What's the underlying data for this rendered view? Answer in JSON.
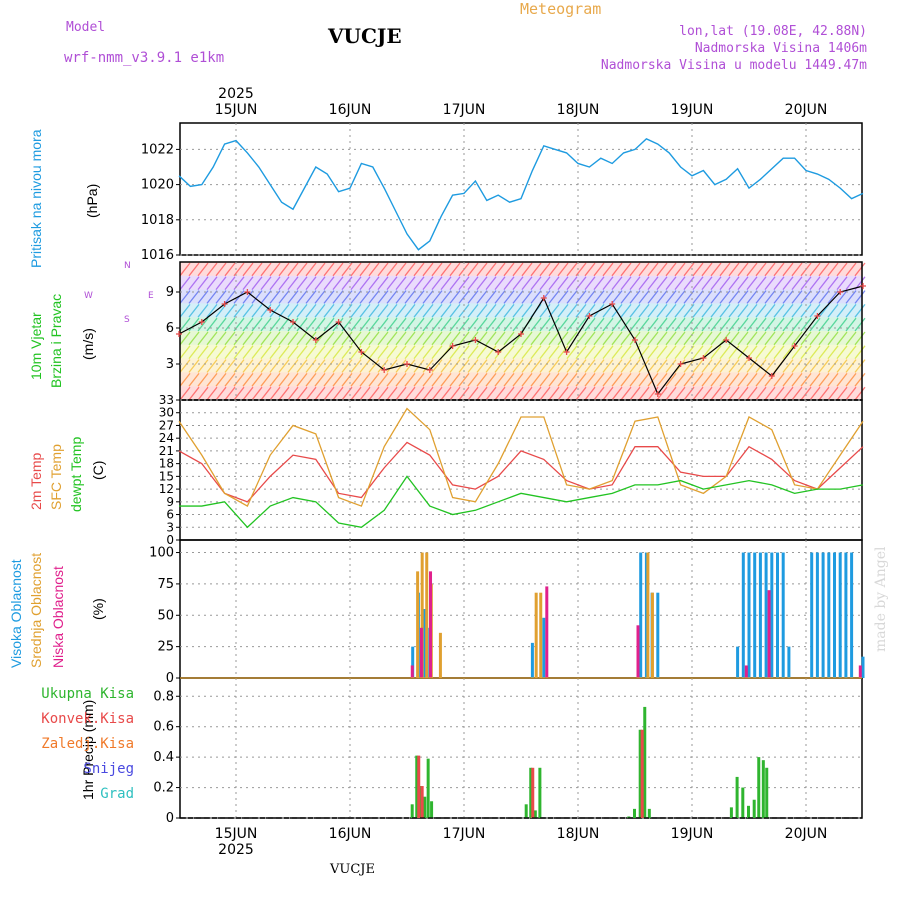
{
  "header": {
    "model_label": "Model",
    "model_name": "wrf-nmm_v3.9.1  e1km",
    "station": "VUCJE",
    "meteogram": "Meteogram",
    "lonlat": "lon,lat (19.08E, 42.88N)",
    "elevation": "Nadmorska Visina 1406m",
    "model_elevation": "Nadmorska Visina u modelu 1449.47m"
  },
  "footer": {
    "station": "VUCJE",
    "watermark": "made by Angel"
  },
  "colors": {
    "pressure": "#1e9be0",
    "temp2m": "#e84a4a",
    "sfc": "#e0a030",
    "dewpt": "#22c322",
    "high_cloud": "#1e9be0",
    "mid_cloud": "#e0a030",
    "low_cloud": "#e0208c",
    "total_precip": "#2fb52f",
    "conv_precip": "#e84a4a",
    "frz_rain": "#f07a2a",
    "snow": "#4a4ae0",
    "graupel": "#2fc0c0"
  },
  "axes": {
    "year": "2025",
    "days": [
      "15JUN",
      "16JUN",
      "17JUN",
      "18JUN",
      "19JUN",
      "20JUN"
    ]
  },
  "panels": {
    "pressure": {
      "label1": "Pritisak na nivou mora",
      "unit": "(hPa)",
      "ticks": [
        "1016",
        "1018",
        "1020",
        "1022"
      ]
    },
    "wind": {
      "label1": "10m Vjetar",
      "label2": "Brzina i Pravac",
      "unit": "(m/s)",
      "ticks": [
        "3",
        "6",
        "9"
      ],
      "compass": {
        "n": "N",
        "s": "S",
        "w": "W",
        "e": "E"
      }
    },
    "temp": {
      "label1": "2m Temp",
      "label2": "SFC Temp",
      "label3": "dewpt Temp",
      "unit": "(C)",
      "ticks": [
        "0",
        "3",
        "6",
        "9",
        "12",
        "15",
        "18",
        "21",
        "24",
        "27",
        "30",
        "33"
      ]
    },
    "cloud": {
      "label1": "Visoka Oblacnost",
      "label2": "Srednja Oblacnost",
      "label3": "Niska Oblacnost",
      "unit": "(%)",
      "ticks": [
        "0",
        "25",
        "50",
        "75",
        "100"
      ]
    },
    "precip": {
      "unit": "1hr Precip (mm)",
      "ticks": [
        "0",
        "0.2",
        "0.4",
        "0.6",
        "0.8"
      ],
      "legend": [
        "Ukupna Kisa",
        "Konvek.Kisa",
        "Zaledj.Kisa",
        "Snijeg",
        "Grad"
      ]
    }
  },
  "chart_data": [
    {
      "type": "line",
      "title": "Pritisak na nivou mora",
      "ylabel": "(hPa)",
      "x_unit": "days from 15JUN 00UTC",
      "ylim": [
        1016,
        1023.5
      ],
      "series": [
        {
          "name": "Pritisak na nivou mora",
          "x": [
            -0.5,
            -0.4,
            -0.3,
            -0.2,
            -0.1,
            0,
            0.1,
            0.2,
            0.3,
            0.4,
            0.5,
            0.6,
            0.7,
            0.8,
            0.9,
            1.0,
            1.1,
            1.2,
            1.3,
            1.4,
            1.5,
            1.6,
            1.7,
            1.8,
            1.9,
            2.0,
            2.1,
            2.2,
            2.3,
            2.4,
            2.5,
            2.6,
            2.7,
            2.8,
            2.9,
            3.0,
            3.1,
            3.2,
            3.3,
            3.4,
            3.5,
            3.6,
            3.7,
            3.8,
            3.9,
            4.0,
            4.1,
            4.2,
            4.3,
            4.4,
            4.5,
            4.6,
            4.7,
            4.8,
            4.9,
            5.0,
            5.1,
            5.2,
            5.3,
            5.4,
            5.5
          ],
          "y": [
            1020.5,
            1019.9,
            1020.0,
            1021.0,
            1022.3,
            1022.5,
            1021.8,
            1021.0,
            1020.0,
            1019.0,
            1018.6,
            1019.8,
            1021.0,
            1020.6,
            1019.6,
            1019.8,
            1021.2,
            1021.0,
            1019.8,
            1018.5,
            1017.2,
            1016.3,
            1016.8,
            1018.2,
            1019.4,
            1019.5,
            1020.2,
            1019.1,
            1019.4,
            1019.0,
            1019.2,
            1020.8,
            1022.2,
            1022.0,
            1021.8,
            1021.2,
            1021.0,
            1021.5,
            1021.2,
            1021.8,
            1022.0,
            1022.6,
            1022.3,
            1021.8,
            1021.0,
            1020.5,
            1020.8,
            1020.0,
            1020.3,
            1020.9,
            1019.8,
            1020.3,
            1020.9,
            1021.5,
            1021.5,
            1020.8,
            1020.6,
            1020.3,
            1019.8,
            1019.2,
            1019.5
          ]
        }
      ]
    },
    {
      "type": "line",
      "title": "10m Vjetar Brzina i Pravac",
      "ylabel": "(m/s)",
      "ylim": [
        0,
        11.5
      ],
      "series": [
        {
          "name": "wind speed",
          "x": [
            -0.5,
            -0.3,
            -0.1,
            0.1,
            0.3,
            0.5,
            0.7,
            0.9,
            1.1,
            1.3,
            1.5,
            1.7,
            1.9,
            2.1,
            2.3,
            2.5,
            2.7,
            2.9,
            3.1,
            3.3,
            3.5,
            3.7,
            3.9,
            4.1,
            4.3,
            4.5,
            4.7,
            4.9,
            5.1,
            5.3,
            5.5
          ],
          "y": [
            5.5,
            6.5,
            8,
            9,
            7.5,
            6.5,
            5,
            6.5,
            4,
            2.5,
            3,
            2.5,
            4.5,
            5,
            4,
            5.5,
            8.5,
            4,
            7,
            8,
            5,
            0.5,
            3,
            3.5,
            5,
            3.5,
            2,
            4.5,
            7,
            9,
            9.5
          ]
        }
      ]
    },
    {
      "type": "line",
      "title": "2m Temp / SFC Temp / dewpt Temp",
      "ylabel": "(C)",
      "ylim": [
        0,
        33
      ],
      "series": [
        {
          "name": "2m Temp",
          "x": [
            -0.5,
            -0.3,
            -0.1,
            0.1,
            0.3,
            0.5,
            0.7,
            0.9,
            1.1,
            1.3,
            1.5,
            1.7,
            1.9,
            2.1,
            2.3,
            2.5,
            2.7,
            2.9,
            3.1,
            3.3,
            3.5,
            3.7,
            3.9,
            4.1,
            4.3,
            4.5,
            4.7,
            4.9,
            5.1,
            5.3,
            5.5
          ],
          "y": [
            21,
            18,
            11,
            9,
            15,
            20,
            19,
            11,
            10,
            17,
            23,
            20,
            13,
            12,
            15,
            21,
            19,
            14,
            12,
            13,
            22,
            22,
            16,
            15,
            15,
            22,
            19,
            14,
            12,
            17,
            22
          ]
        },
        {
          "name": "SFC Temp",
          "x": [
            -0.5,
            -0.3,
            -0.1,
            0.1,
            0.3,
            0.5,
            0.7,
            0.9,
            1.1,
            1.3,
            1.5,
            1.7,
            1.9,
            2.1,
            2.3,
            2.5,
            2.7,
            2.9,
            3.1,
            3.3,
            3.5,
            3.7,
            3.9,
            4.1,
            4.3,
            4.5,
            4.7,
            4.9,
            5.1,
            5.3,
            5.5
          ],
          "y": [
            28,
            20,
            11,
            8,
            20,
            27,
            25,
            10,
            8,
            22,
            31,
            26,
            10,
            9,
            18,
            29,
            29,
            13,
            12,
            14,
            28,
            29,
            13,
            11,
            15,
            29,
            26,
            13,
            12,
            20,
            28
          ]
        },
        {
          "name": "dewpt Temp",
          "x": [
            -0.5,
            -0.3,
            -0.1,
            0.1,
            0.3,
            0.5,
            0.7,
            0.9,
            1.1,
            1.3,
            1.5,
            1.7,
            1.9,
            2.1,
            2.3,
            2.5,
            2.7,
            2.9,
            3.1,
            3.3,
            3.5,
            3.7,
            3.9,
            4.1,
            4.3,
            4.5,
            4.7,
            4.9,
            5.1,
            5.3,
            5.5
          ],
          "y": [
            8,
            8,
            9,
            3,
            8,
            10,
            9,
            4,
            3,
            7,
            15,
            8,
            6,
            7,
            9,
            11,
            10,
            9,
            10,
            11,
            13,
            13,
            14,
            12,
            13,
            14,
            13,
            11,
            12,
            12,
            13
          ]
        }
      ]
    },
    {
      "type": "bar",
      "title": "Oblacnost",
      "ylabel": "(%)",
      "ylim": [
        0,
        100
      ],
      "series": [
        {
          "name": "Visoka Oblacnost",
          "x": [
            1.55,
            1.6,
            1.65,
            1.7,
            2.6,
            2.7,
            3.55,
            3.6,
            3.65,
            3.7,
            4.4,
            4.45,
            4.5,
            4.55,
            4.6,
            4.65,
            4.7,
            4.75,
            4.8,
            4.85,
            5.05,
            5.1,
            5.15,
            5.2,
            5.25,
            5.3,
            5.35,
            5.4,
            5.5
          ],
          "y": [
            25,
            68,
            55,
            40,
            28,
            48,
            100,
            100,
            68,
            68,
            25,
            100,
            100,
            100,
            100,
            100,
            100,
            100,
            100,
            25,
            100,
            100,
            100,
            100,
            100,
            100,
            100,
            100,
            17
          ]
        },
        {
          "name": "Srednja Oblacnost",
          "x": [
            1.58,
            1.62,
            1.66,
            1.7,
            1.78,
            2.62,
            2.66,
            3.6,
            3.64
          ],
          "y": [
            85,
            100,
            100,
            75,
            36,
            68,
            68,
            100,
            68
          ]
        },
        {
          "name": "Niska Oblacnost",
          "x": [
            1.52,
            1.6,
            1.68,
            2.7,
            3.5,
            4.45,
            4.65,
            5.45
          ],
          "y": [
            10,
            40,
            85,
            73,
            42,
            10,
            70,
            10
          ]
        }
      ]
    },
    {
      "type": "bar",
      "title": "1hr Precip",
      "ylabel": "1hr Precip (mm)",
      "ylim": [
        0,
        0.9
      ],
      "series": [
        {
          "name": "Ukupna Kisa",
          "x": [
            1.55,
            1.59,
            1.62,
            1.66,
            1.69,
            1.72,
            2.55,
            2.59,
            2.63,
            2.67,
            3.45,
            3.5,
            3.55,
            3.59,
            3.63,
            4.35,
            4.4,
            4.45,
            4.5,
            4.55,
            4.59,
            4.63,
            4.66
          ],
          "y": [
            0.09,
            0.41,
            0.21,
            0.14,
            0.39,
            0.11,
            0.09,
            0.33,
            0.05,
            0.33,
            0.01,
            0.06,
            0.58,
            0.73,
            0.06,
            0.07,
            0.27,
            0.2,
            0.08,
            0.12,
            0.4,
            0.38,
            0.33
          ]
        },
        {
          "name": "Konvek.Kisa",
          "x": [
            1.59,
            1.62,
            2.59,
            3.55
          ],
          "y": [
            0.41,
            0.21,
            0.33,
            0.58
          ]
        }
      ]
    }
  ]
}
